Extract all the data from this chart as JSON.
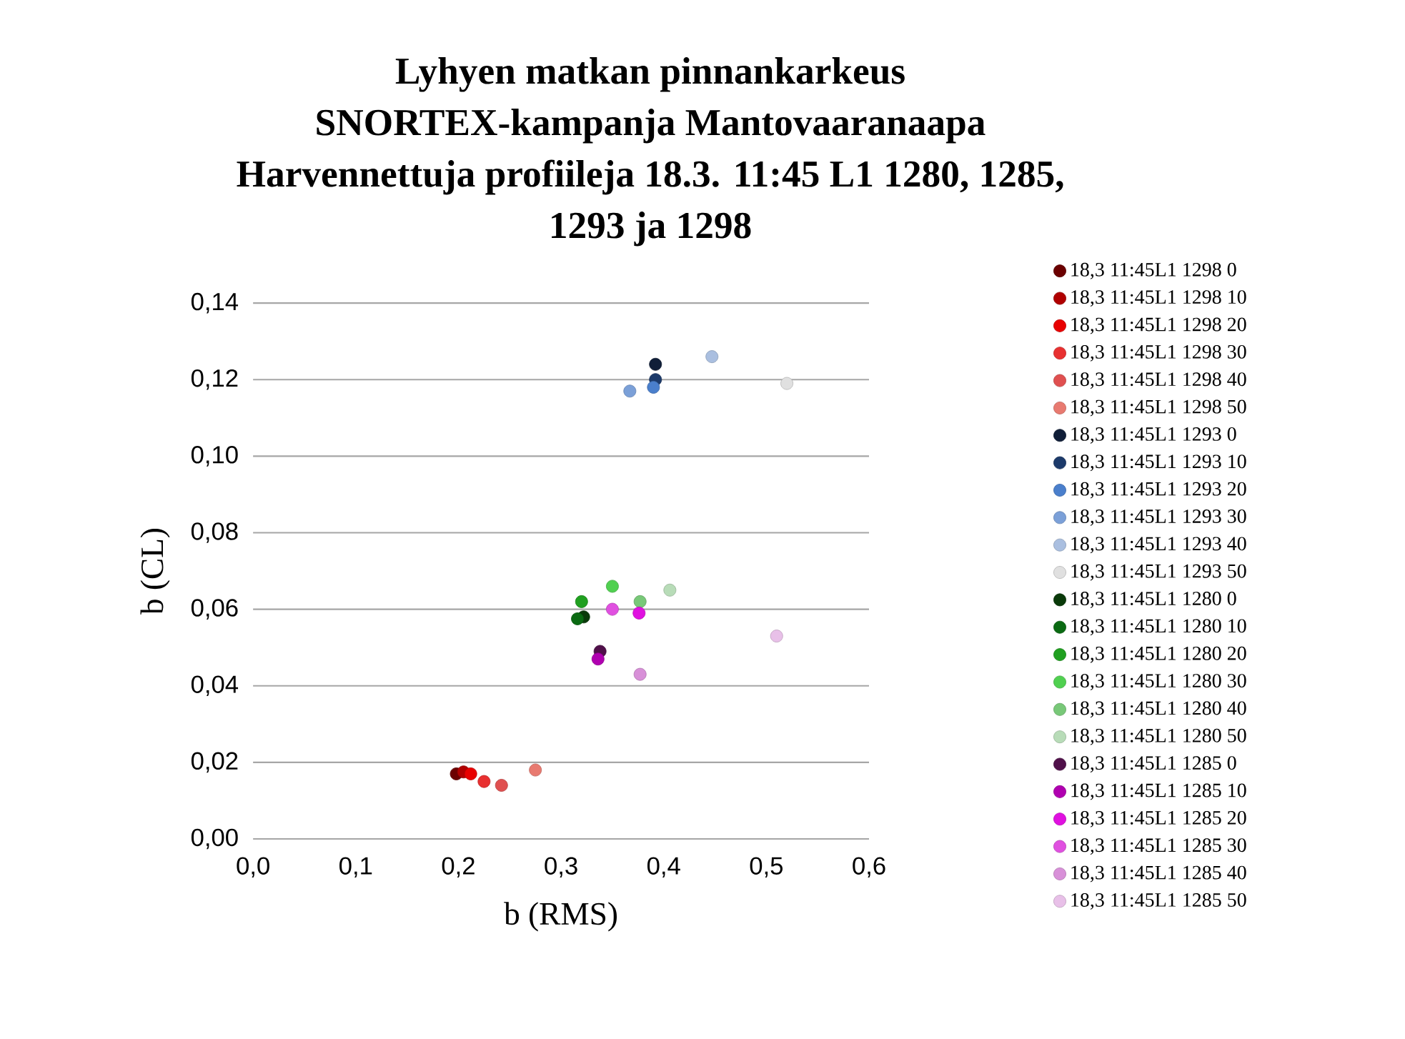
{
  "chart_data": {
    "type": "scatter",
    "title": "Lyhyen matkan pinnankarkeus\nSNORTEX-kampanja Mantovaaranaapa\nHarvennettuja profiileja 18.3. 11:45 L1 1280, 1285,\n1293 ja 1298",
    "xlabel": "b (RMS)",
    "ylabel": "b (CL)",
    "xlim": [
      0,
      0.6
    ],
    "xticks": [
      {
        "value": 0,
        "label": "0,0"
      },
      {
        "value": 0.1,
        "label": "0,1"
      },
      {
        "value": 0.2,
        "label": "0,2"
      },
      {
        "value": 0.3,
        "label": "0,3"
      },
      {
        "value": 0.4,
        "label": "0,4"
      },
      {
        "value": 0.5,
        "label": "0,5"
      },
      {
        "value": 0.6,
        "label": "0,6"
      }
    ],
    "ylim": [
      0,
      0.14
    ],
    "yticks": [
      {
        "value": 0,
        "label": "0,00"
      },
      {
        "value": 0.02,
        "label": "0,02"
      },
      {
        "value": 0.04,
        "label": "0,04"
      },
      {
        "value": 0.06,
        "label": "0,06"
      },
      {
        "value": 0.08,
        "label": "0,08"
      },
      {
        "value": 0.1,
        "label": "0,10"
      },
      {
        "value": 0.12,
        "label": "0,12"
      },
      {
        "value": 0.14,
        "label": "0,14"
      }
    ],
    "grid": "y",
    "legend": "right",
    "marker": "circle",
    "series": [
      {
        "name": "18,3 11:45L1 1298 0",
        "color": "#6b0000",
        "x": [
          0.198
        ],
        "values": [
          0.017
        ]
      },
      {
        "name": "18,3 11:45L1 1298 10",
        "color": "#b00000",
        "x": [
          0.205
        ],
        "values": [
          0.0175
        ]
      },
      {
        "name": "18,3 11:45L1 1298 20",
        "color": "#e80000",
        "x": [
          0.212
        ],
        "values": [
          0.017
        ]
      },
      {
        "name": "18,3 11:45L1 1298 30",
        "color": "#e83030",
        "x": [
          0.225
        ],
        "values": [
          0.015
        ]
      },
      {
        "name": "18,3 11:45L1 1298 40",
        "color": "#e05050",
        "x": [
          0.242
        ],
        "values": [
          0.014
        ]
      },
      {
        "name": "18,3 11:45L1 1298 50",
        "color": "#e87a70",
        "x": [
          0.275
        ],
        "values": [
          0.018
        ]
      },
      {
        "name": "18,3 11:45L1 1293 0",
        "color": "#101e38",
        "x": [
          0.392
        ],
        "values": [
          0.124
        ]
      },
      {
        "name": "18,3 11:45L1 1293 10",
        "color": "#1c3a6a",
        "x": [
          0.392
        ],
        "values": [
          0.12
        ]
      },
      {
        "name": "18,3 11:45L1 1293 20",
        "color": "#4a7fcc",
        "x": [
          0.39
        ],
        "values": [
          0.118
        ]
      },
      {
        "name": "18,3 11:45L1 1293 30",
        "color": "#7ba0d8",
        "x": [
          0.367
        ],
        "values": [
          0.117
        ]
      },
      {
        "name": "18,3 11:45L1 1293 40",
        "color": "#aabfe0",
        "x": [
          0.447
        ],
        "values": [
          0.126
        ]
      },
      {
        "name": "18,3 11:45L1 1293 50",
        "color": "#e0e0e0",
        "x": [
          0.52
        ],
        "values": [
          0.119
        ]
      },
      {
        "name": "18,3 11:45L1 1280 0",
        "color": "#0a3a0a",
        "x": [
          0.322
        ],
        "values": [
          0.058
        ]
      },
      {
        "name": "18,3 11:45L1 1280 10",
        "color": "#0a6a12",
        "x": [
          0.316
        ],
        "values": [
          0.0575
        ]
      },
      {
        "name": "18,3 11:45L1 1280 20",
        "color": "#20a020",
        "x": [
          0.32
        ],
        "values": [
          0.062
        ]
      },
      {
        "name": "18,3 11:45L1 1280 30",
        "color": "#50d050",
        "x": [
          0.35
        ],
        "values": [
          0.066
        ]
      },
      {
        "name": "18,3 11:45L1 1280 40",
        "color": "#78c878",
        "x": [
          0.377
        ],
        "values": [
          0.062
        ]
      },
      {
        "name": "18,3 11:45L1 1280 50",
        "color": "#b8dcb8",
        "x": [
          0.406
        ],
        "values": [
          0.065
        ]
      },
      {
        "name": "18,3 11:45L1 1285 0",
        "color": "#50104a",
        "x": [
          0.338
        ],
        "values": [
          0.049
        ]
      },
      {
        "name": "18,3 11:45L1 1285 10",
        "color": "#b000b0",
        "x": [
          0.336
        ],
        "values": [
          0.047
        ]
      },
      {
        "name": "18,3 11:45L1 1285 20",
        "color": "#e010e0",
        "x": [
          0.376
        ],
        "values": [
          0.059
        ]
      },
      {
        "name": "18,3 11:45L1 1285 30",
        "color": "#e050e0",
        "x": [
          0.35
        ],
        "values": [
          0.06
        ]
      },
      {
        "name": "18,3 11:45L1 1285 40",
        "color": "#d890d8",
        "x": [
          0.377
        ],
        "values": [
          0.043
        ]
      },
      {
        "name": "18,3 11:45L1 1285 50",
        "color": "#e8c0e8",
        "x": [
          0.51
        ],
        "values": [
          0.053
        ]
      }
    ]
  }
}
